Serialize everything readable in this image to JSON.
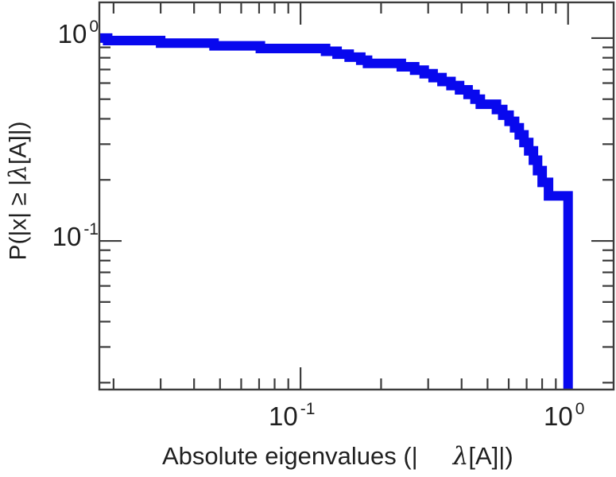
{
  "figure": {
    "background": "#ffffff",
    "frame_color": "#3c3c3c",
    "tick_color": "#3c3c3c",
    "text_color": "#1f1f1f",
    "line_color": "#0808ee"
  },
  "chart_data": {
    "type": "line",
    "line_style": "step-ccdf",
    "title": "",
    "xlabel": "Absolute eigenvalues (| λ[A]|)",
    "ylabel": "P(|x| ≥ |λ[A]|)",
    "xscale": "log",
    "yscale": "log",
    "xlim": [
      0.0177,
      1.48
    ],
    "ylim": [
      0.0185,
      1.5
    ],
    "grid": "off",
    "legend": "none",
    "x_major_ticks": [
      0.1,
      1
    ],
    "y_major_ticks": [
      1,
      0.1
    ],
    "x_minor_ticks": [
      0.02,
      0.03,
      0.04,
      0.05,
      0.06,
      0.07,
      0.08,
      0.09,
      0.2,
      0.3,
      0.4,
      0.5,
      0.6,
      0.7,
      0.8,
      0.9
    ],
    "y_minor_ticks": [
      0.02,
      0.03,
      0.04,
      0.05,
      0.06,
      0.07,
      0.08,
      0.09,
      0.2,
      0.3,
      0.4,
      0.5,
      0.6,
      0.7,
      0.8,
      0.9
    ],
    "n_eigenvalues": 36,
    "abs_eigenvalues": [
      0.019,
      0.03,
      0.0475,
      0.0708,
      0.124,
      0.137,
      0.152,
      0.168,
      0.178,
      0.238,
      0.267,
      0.29,
      0.313,
      0.338,
      0.365,
      0.393,
      0.423,
      0.449,
      0.47,
      0.54,
      0.57,
      0.602,
      0.631,
      0.657,
      0.684,
      0.713,
      0.742,
      0.769,
      0.8,
      0.845,
      1.0,
      1.0,
      1.0,
      1.0,
      1.0,
      1.0
    ]
  },
  "tick_labels": {
    "y0": {
      "base": "10",
      "exp": "0"
    },
    "y1": {
      "base": "10",
      "exp": "-1"
    },
    "x0": {
      "base": "10",
      "exp": "-1"
    },
    "x1": {
      "base": "10",
      "exp": "0"
    }
  },
  "labels": {
    "x_part1": "Absolute eigenvalues (|",
    "x_lambda": "λ",
    "x_part2": "[A]|)",
    "y_part1": "P(|x| ≥ |",
    "y_lambda": "λ",
    "y_part2": "[A]|)"
  }
}
